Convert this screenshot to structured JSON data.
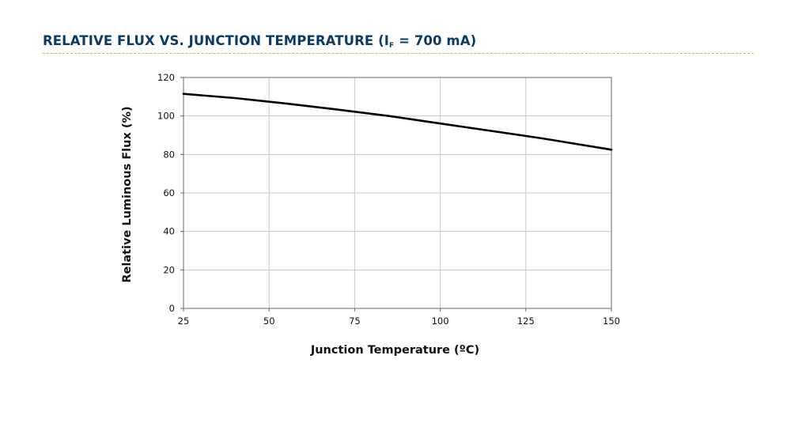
{
  "header": {
    "title_main": "RELATIVE FLUX VS. JUNCTION TEMPERATURE (I",
    "title_sub": "F",
    "title_tail": " = 700 mA)"
  },
  "colors": {
    "title": "#0e3b64",
    "rule": "#b9bf4a",
    "grid": "#c8c8c8",
    "axis": "#666666",
    "line": "#000000"
  },
  "chart_data": {
    "type": "line",
    "xlabel": "Junction Temperature (ºC)",
    "ylabel": "Relative Luminous Flux (%)",
    "xlim": [
      25,
      150
    ],
    "ylim": [
      0,
      120
    ],
    "xticks": [
      25,
      50,
      75,
      100,
      125,
      150
    ],
    "yticks": [
      0,
      20,
      40,
      60,
      80,
      100,
      120
    ],
    "grid": true,
    "legend": "none",
    "series": [
      {
        "x": [
          25,
          40,
          55,
          70,
          85,
          100,
          115,
          130,
          150
        ],
        "y": [
          111.5,
          109.3,
          106.5,
          103.3,
          100,
          96.1,
          92.2,
          88.3,
          82.5
        ]
      }
    ]
  }
}
